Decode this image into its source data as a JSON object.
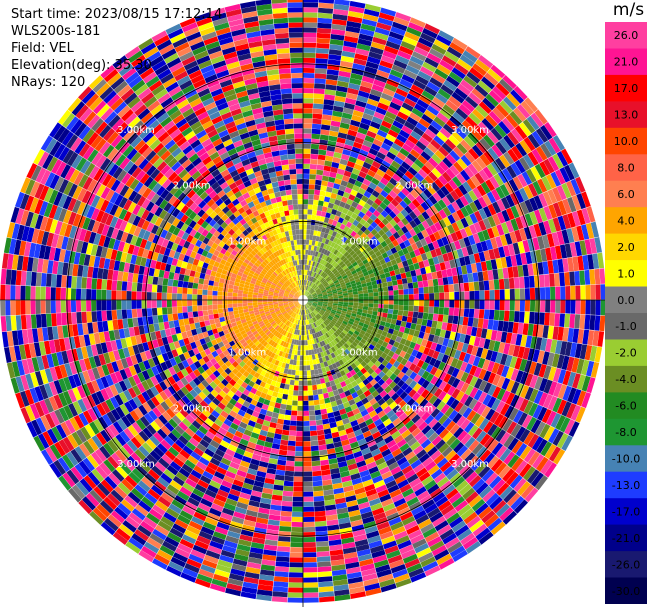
{
  "info": {
    "start_time": "Start time: 2023/08/15 17:12:14",
    "instrument": "WLS200s-181",
    "field": "Field: VEL",
    "elevation": "Elevation(deg): 35.30",
    "nrays": "NRays: 120"
  },
  "colorbar": {
    "title": "m/s",
    "ticks": [
      "26.0",
      "21.0",
      "17.0",
      "13.0",
      "10.0",
      "8.0",
      "6.0",
      "4.0",
      "2.0",
      "1.0",
      "0.0",
      "-1.0",
      "-2.0",
      "-4.0",
      "-6.0",
      "-8.0",
      "-10.0",
      "-13.0",
      "-17.0",
      "-21.0",
      "-26.0",
      "-30.0"
    ],
    "colors": [
      "#ff3fa0",
      "#ff1493",
      "#ff0000",
      "#e8102a",
      "#ff4500",
      "#ff6347",
      "#ff7f50",
      "#ffa500",
      "#ffd700",
      "#ffff00",
      "#808080",
      "#696969",
      "#9acd32",
      "#6b8e23",
      "#228b22",
      "#1e9632",
      "#4682b4",
      "#1e3cff",
      "#0000cd",
      "#00008b",
      "#191970",
      "#000050"
    ]
  },
  "chart_data": {
    "type": "heatmap",
    "projection": "polar",
    "field": "VEL",
    "units": "m/s",
    "range_rings_km": [
      1.0,
      2.0,
      3.0
    ],
    "ring_labels": [
      "1.00km",
      "2.00km",
      "3.00km",
      "1.00km",
      "2.00km",
      "3.00km",
      "1.00km",
      "2.00km",
      "3.00km",
      "1.00km",
      "2.00km",
      "3.00km"
    ],
    "max_range_km": 3.85,
    "nrays": 120,
    "velocity_range": [
      -30,
      26
    ],
    "approximate_pattern": {
      "near_field_radius_km": 1.55,
      "west_sector_velocity_ms": 3.5,
      "east_sector_velocity_ms": -5.0,
      "far_field": "noise"
    }
  }
}
